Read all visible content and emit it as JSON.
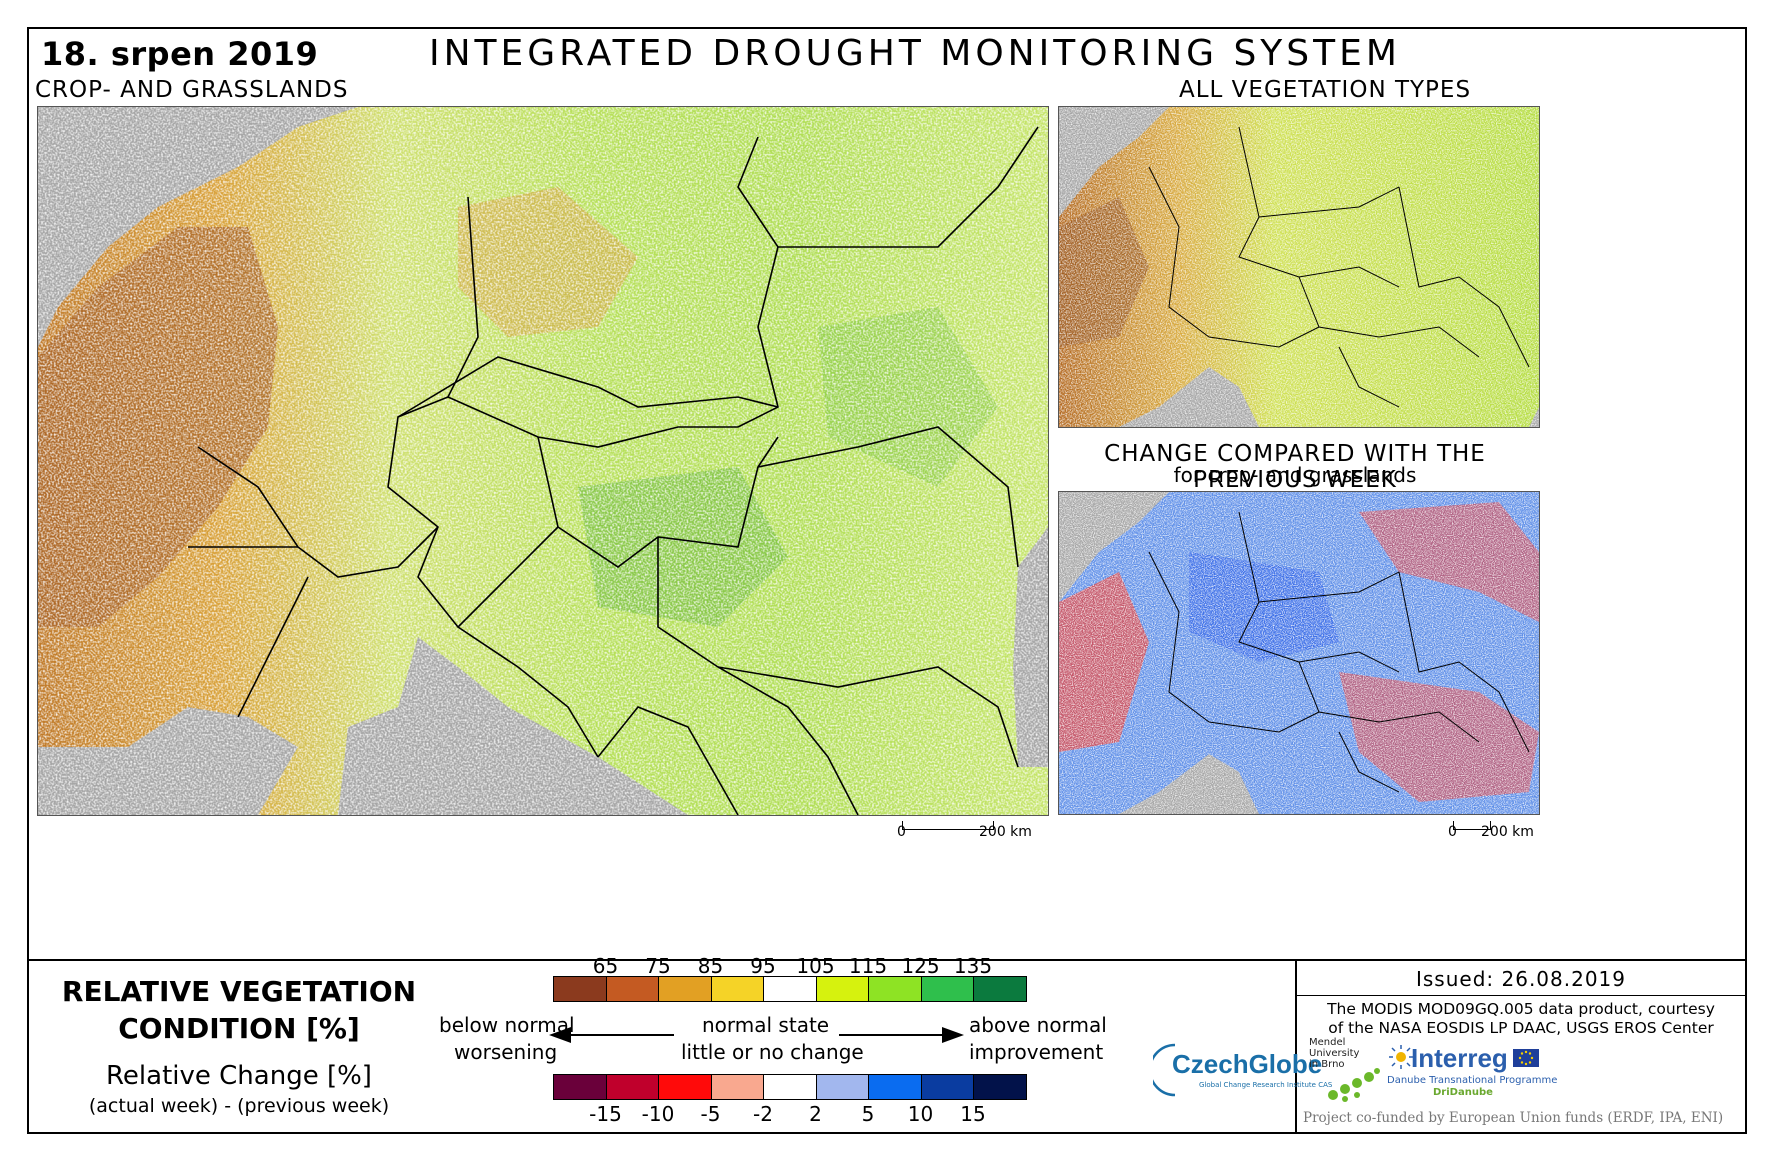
{
  "header": {
    "date": "18. srpen 2019",
    "title": "INTEGRATED DROUGHT MONITORING SYSTEM"
  },
  "maps": {
    "main": {
      "label": "CROP- AND GRASSLANDS",
      "scale_start": "0",
      "scale_end": "200 km"
    },
    "all_vegetation": {
      "label": "ALL VEGETATION TYPES"
    },
    "change": {
      "label": "CHANGE COMPARED WITH THE PREVIOUS WEEK",
      "label2": "for crop- and grasslands",
      "scale_start": "0",
      "scale_end": "200 km"
    }
  },
  "colors": {
    "sea": "#a6a6a6",
    "rvc": [
      "#8b3a1e",
      "#c45a22",
      "#e2a023",
      "#f5d327",
      "#ffffff",
      "#d6f20e",
      "#8ee324",
      "#2fbf4c",
      "#0b7a3e"
    ],
    "change": [
      "#6a003a",
      "#c0002c",
      "#ff0a0a",
      "#f9a88f",
      "#ffffff",
      "#a2b7ee",
      "#0a6cf0",
      "#0a3ca0",
      "#02124a"
    ]
  },
  "legend": {
    "title_line1": "RELATIVE VEGETATION",
    "title_line2": "CONDITION [%]",
    "change_title": "Relative Change [%]",
    "change_sub": "(actual week) - (previous week)",
    "rvc_ticks": [
      "65",
      "75",
      "85",
      "95",
      "105",
      "115",
      "125",
      "135"
    ],
    "change_ticks": [
      "-15",
      "-10",
      "-5",
      "-2",
      "2",
      "5",
      "10",
      "15"
    ],
    "left_top": "below normal",
    "left_bottom": "worsening",
    "mid_top": "normal state",
    "mid_bottom": "little or no change",
    "right_top": "above normal",
    "right_bottom": "improvement"
  },
  "info": {
    "issued": "Issued: 26.08.2019",
    "credit_line1": "The MODIS MOD09GQ.005 data product, courtesy",
    "credit_line2": "of the NASA EOSDIS LP DAAC, USGS EROS Center",
    "funded": "Project co-funded by European Union funds (ERDF, IPA, ENI)"
  },
  "logos": {
    "czechglobe": "CzechGlobe",
    "czechglobe_sub": "Global Change Research Institute CAS",
    "mendel": [
      "Mendel",
      "University",
      "in Brno"
    ],
    "interreg": "Interreg",
    "interreg_sub": "Danube Transnational Programme",
    "dridanube": "DriDanube"
  }
}
